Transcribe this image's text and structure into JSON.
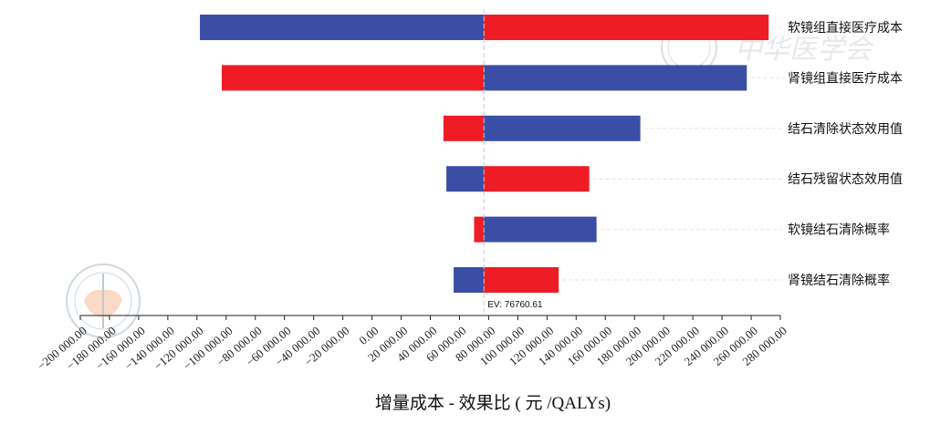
{
  "chart_data": {
    "type": "tornado",
    "xlabel": "增量成本 - 效果比 ( 元 /QALYs)",
    "ev_label": "EV: 76760.61",
    "ev_value": 76760.61,
    "xlim": [
      -200000,
      280000
    ],
    "tick_values": [
      -200000,
      -180000,
      -160000,
      -140000,
      -120000,
      -100000,
      -80000,
      -60000,
      -40000,
      -20000,
      0,
      20000,
      40000,
      60000,
      80000,
      100000,
      120000,
      140000,
      160000,
      180000,
      200000,
      220000,
      240000,
      260000,
      280000
    ],
    "tick_labels": [
      "−200 000.00",
      "−180 000.00",
      "−160 000.00",
      "−140 000.00",
      "−120 000.00",
      "−100 000.00",
      "−80 000.00",
      "−60 000.00",
      "−40 000.00",
      "−20 000.00",
      "0.00",
      "20 000.00",
      "40 000.00",
      "60 000.00",
      "80 000.00",
      "100 000.00",
      "120 000.00",
      "140 000.00",
      "160 000.00",
      "180 000.00",
      "200 000.00",
      "220 000.00",
      "240 000.00",
      "260 000.00",
      "280 000.00"
    ],
    "bar_colors": {
      "red": "#ee1c25",
      "blue": "#3b4ea5"
    },
    "bars": [
      {
        "label": "软镜组直接医疗成本",
        "low": -118000,
        "high": 272000,
        "left_color": "blue",
        "right_color": "red"
      },
      {
        "label": "肾镜组直接医疗成本",
        "low": -103000,
        "high": 257000,
        "left_color": "red",
        "right_color": "blue"
      },
      {
        "label": "结石清除状态效用值",
        "low": 49000,
        "high": 184000,
        "left_color": "red",
        "right_color": "blue"
      },
      {
        "label": "结石残留状态效用值",
        "low": 51000,
        "high": 149000,
        "left_color": "blue",
        "right_color": "red"
      },
      {
        "label": "软镜结石清除概率",
        "low": 70000,
        "high": 154000,
        "left_color": "red",
        "right_color": "blue"
      },
      {
        "label": "肾镜结石清除概率",
        "low": 56000,
        "high": 128000,
        "left_color": "blue",
        "right_color": "red"
      }
    ]
  }
}
